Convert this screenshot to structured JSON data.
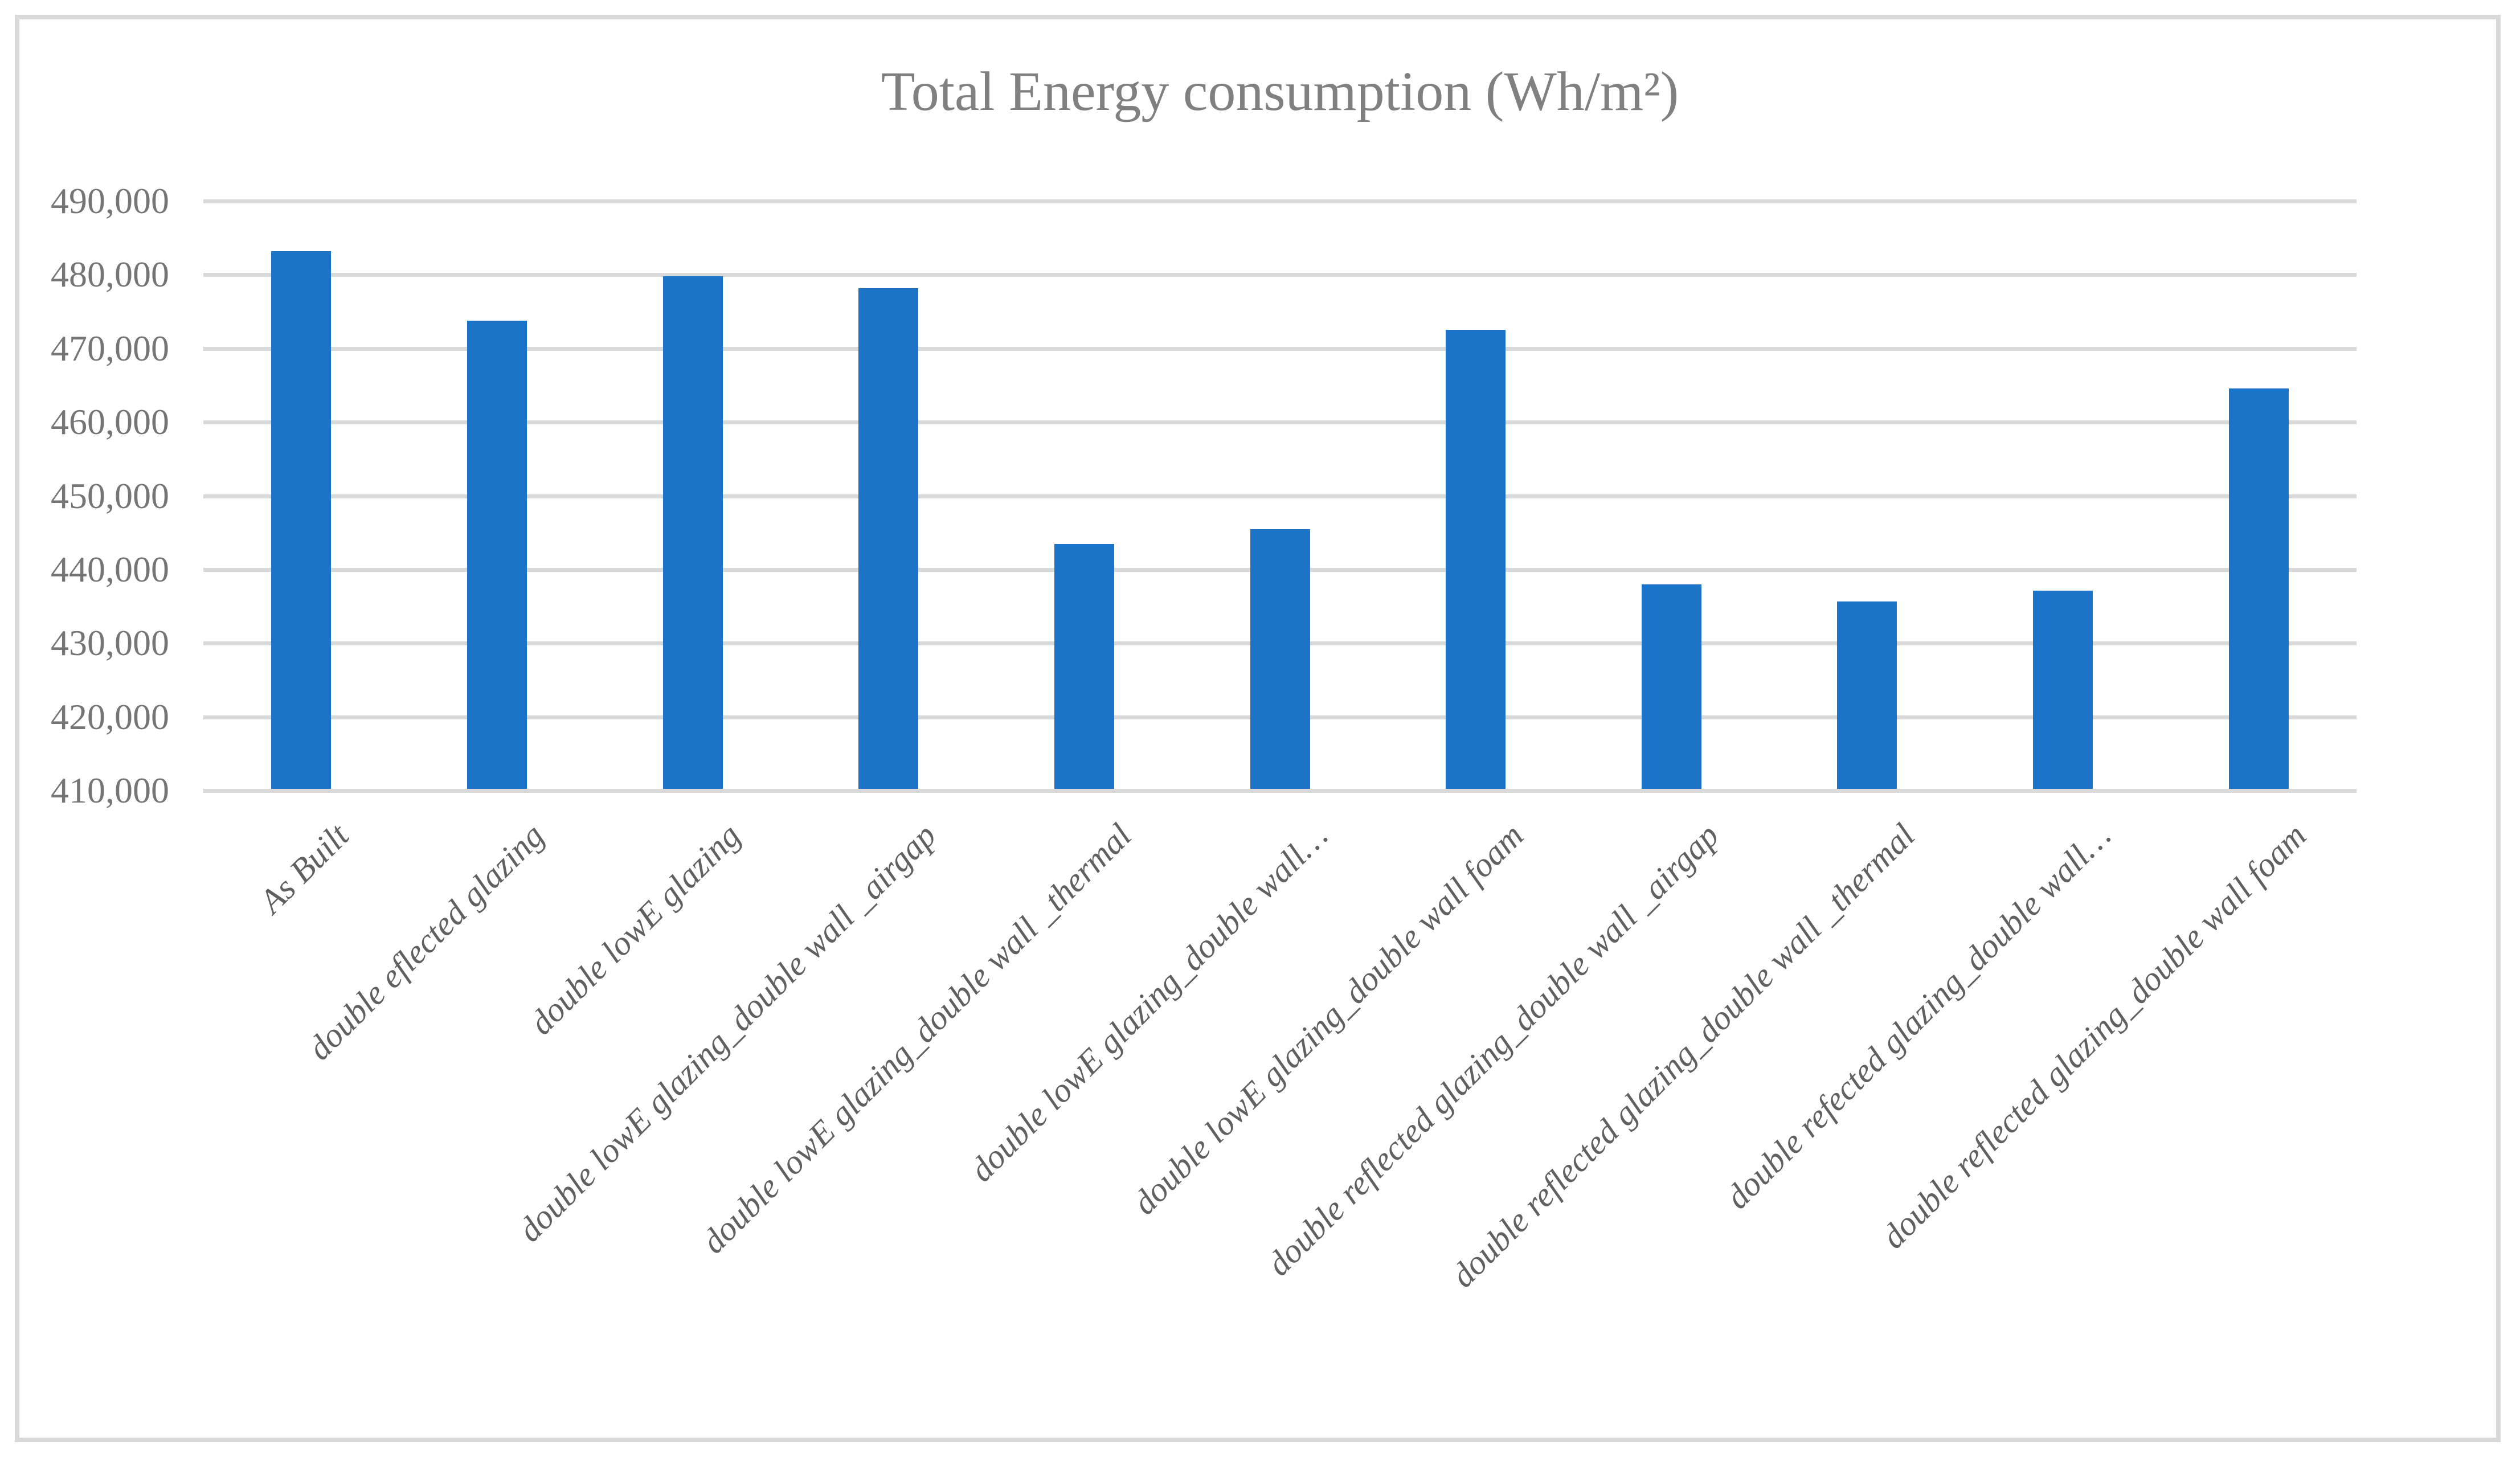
{
  "chart_data": {
    "type": "bar",
    "title": "Total Energy consumption (Wh/m²)",
    "categories": [
      "As Built",
      "double eflected glazing",
      "double lowE glazing",
      "double lowE glazing_double wall _airgap",
      "double lowE glazing_double wall _thermal",
      "double lowE glazing_double wall…",
      "double lowE glazing_double wall foam",
      "double reflected glazing_double wall _airgap",
      "double reflected glazing_double wall _thermal",
      "double refected glazing_double wall…",
      "double reflected glazing_double wall foam"
    ],
    "values": [
      483200,
      473800,
      479800,
      478200,
      443500,
      445500,
      472500,
      438000,
      435700,
      437100,
      464600
    ],
    "y_ticks": [
      "490,000",
      "480,000",
      "470,000",
      "460,000",
      "450,000",
      "440,000",
      "430,000",
      "420,000",
      "410,000"
    ],
    "ylim": [
      410000,
      490000
    ],
    "y_tick_step": 10000,
    "grid": true,
    "legend_position": "none",
    "xlabel": "",
    "ylabel": "",
    "colors": {
      "bar": "#1B74C8",
      "gridline": "#D9D9D9",
      "frame": "#D9D9D9",
      "title_text": "#808080",
      "y_tick_text": "#757575",
      "x_tick_text": "#606060",
      "background": "#FFFFFF"
    }
  }
}
